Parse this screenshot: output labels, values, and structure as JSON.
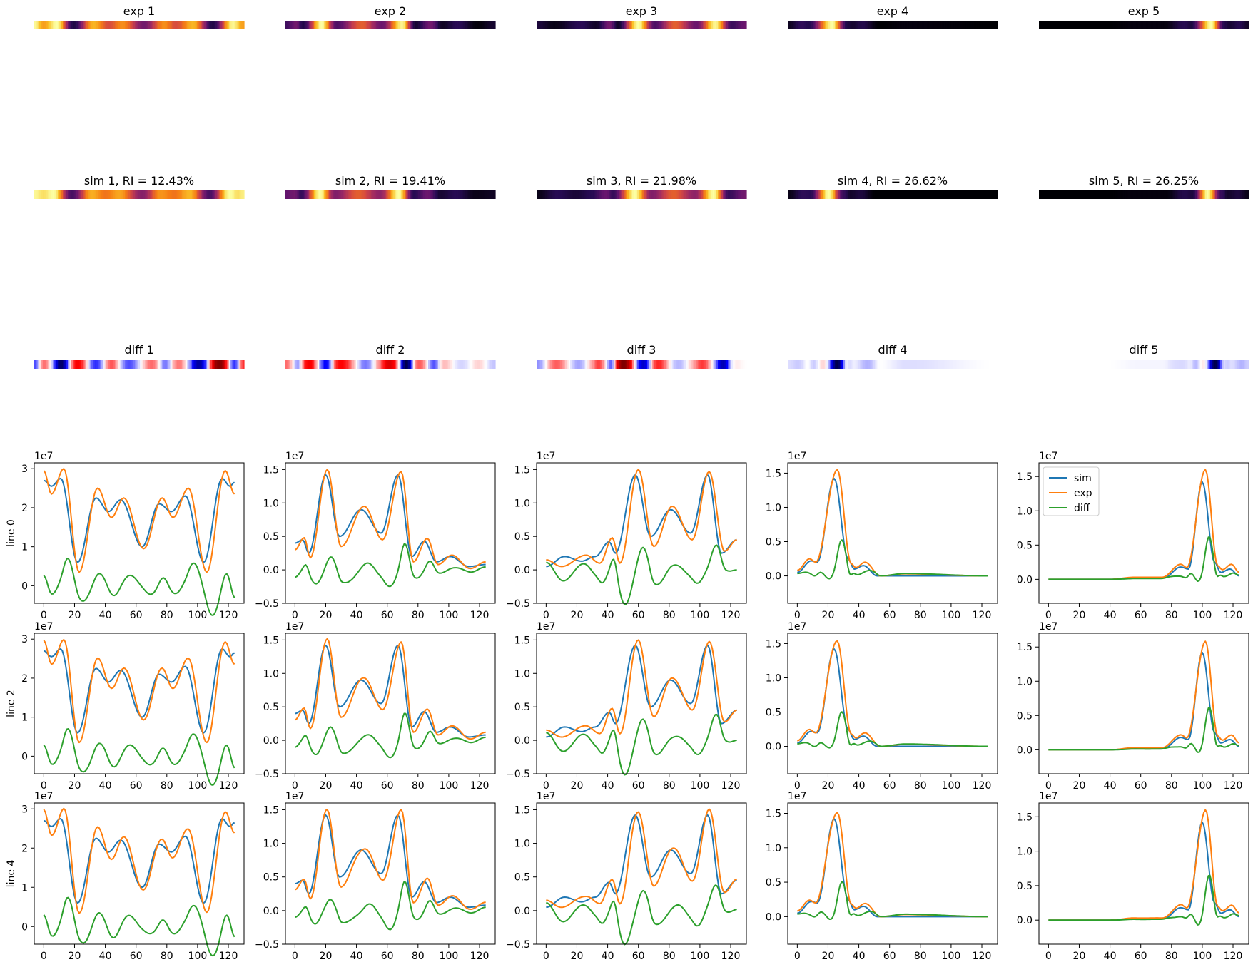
{
  "figure": {
    "colormap_titles": {
      "exp": [
        "exp 1",
        "exp 2",
        "exp 3",
        "exp 4",
        "exp 5"
      ],
      "sim": [
        "sim 1, RI = 12.43%",
        "sim 2, RI = 19.41%",
        "sim 3, RI = 21.98%",
        "sim 4, RI = 26.62%",
        "sim 5, RI = 26.25%"
      ],
      "diff": [
        "diff 1",
        "diff 2",
        "diff 3",
        "diff 4",
        "diff 5"
      ]
    },
    "row_labels": [
      "line 0",
      "line 2",
      "line 4"
    ],
    "offset_label": "1e7",
    "colors": {
      "sim": "#1f77b4",
      "exp": "#ff7f0e",
      "diff": "#2ca02c"
    },
    "colormaps": {
      "image": "inferno",
      "diff": "seismic"
    }
  },
  "chart_data": {
    "type": "line",
    "x_range": [
      0,
      124
    ],
    "xticks": [
      0,
      20,
      40,
      60,
      80,
      100,
      120
    ],
    "legend": {
      "entries": [
        "sim",
        "exp",
        "diff"
      ],
      "placement": "upper-left",
      "panel": "line 0, column 5"
    },
    "columns": [
      {
        "ylim": [
          -0.45,
          3.15
        ],
        "yticks": [
          0,
          1,
          2,
          3
        ],
        "ytick_labels": [
          "0",
          "1",
          "2",
          "3"
        ],
        "sim_peaks": [
          [
            0,
            2.7
          ],
          [
            5,
            2.55
          ],
          [
            11,
            2.75
          ],
          [
            22,
            0.6
          ],
          [
            34,
            2.25
          ],
          [
            42,
            1.9
          ],
          [
            50,
            2.2
          ],
          [
            64,
            1.0
          ],
          [
            75,
            2.1
          ],
          [
            83,
            1.9
          ],
          [
            92,
            2.3
          ],
          [
            104,
            0.6
          ],
          [
            116,
            2.75
          ],
          [
            121,
            2.55
          ],
          [
            124,
            2.65
          ]
        ],
        "exp_peaks": [
          [
            0,
            2.95
          ],
          [
            5,
            2.35
          ],
          [
            13,
            3.0
          ],
          [
            23,
            0.35
          ],
          [
            35,
            2.5
          ],
          [
            44,
            1.75
          ],
          [
            52,
            2.25
          ],
          [
            65,
            0.95
          ],
          [
            77,
            2.25
          ],
          [
            84,
            1.75
          ],
          [
            94,
            2.5
          ],
          [
            106,
            0.35
          ],
          [
            118,
            2.95
          ],
          [
            124,
            2.35
          ]
        ]
      },
      {
        "ylim": [
          -0.5,
          1.6
        ],
        "yticks": [
          -0.5,
          0,
          0.5,
          1.0,
          1.5
        ],
        "ytick_labels": [
          "−0.5",
          "0.0",
          "0.5",
          "1.0",
          "1.5"
        ],
        "sim_peaks": [
          [
            0,
            0.4
          ],
          [
            5,
            0.45
          ],
          [
            9,
            0.25
          ],
          [
            20,
            1.42
          ],
          [
            29,
            0.5
          ],
          [
            43,
            0.9
          ],
          [
            56,
            0.55
          ],
          [
            67,
            1.42
          ],
          [
            76,
            0.2
          ],
          [
            84,
            0.43
          ],
          [
            92,
            0.12
          ],
          [
            101,
            0.2
          ],
          [
            113,
            0.05
          ],
          [
            124,
            0.08
          ]
        ],
        "exp_peaks": [
          [
            0,
            0.3
          ],
          [
            6,
            0.48
          ],
          [
            10,
            0.18
          ],
          [
            21,
            1.5
          ],
          [
            30,
            0.35
          ],
          [
            45,
            0.95
          ],
          [
            57,
            0.45
          ],
          [
            69,
            1.47
          ],
          [
            77,
            0.12
          ],
          [
            86,
            0.47
          ],
          [
            93,
            0.08
          ],
          [
            102,
            0.22
          ],
          [
            114,
            0.02
          ],
          [
            124,
            0.12
          ]
        ]
      },
      {
        "ylim": [
          -0.5,
          1.6
        ],
        "yticks": [
          -0.5,
          0,
          0.5,
          1.0,
          1.5
        ],
        "ytick_labels": [
          "−0.5",
          "0.0",
          "0.5",
          "1.0",
          "1.5"
        ],
        "sim_peaks": [
          [
            0,
            0.05
          ],
          [
            12,
            0.2
          ],
          [
            23,
            0.13
          ],
          [
            32,
            0.2
          ],
          [
            41,
            0.42
          ],
          [
            45,
            0.25
          ],
          [
            58,
            1.42
          ],
          [
            68,
            0.5
          ],
          [
            81,
            0.9
          ],
          [
            94,
            0.55
          ],
          [
            105,
            1.42
          ],
          [
            114,
            0.25
          ],
          [
            124,
            0.45
          ]
        ],
        "exp_peaks": [
          [
            0,
            0.15
          ],
          [
            10,
            0.05
          ],
          [
            26,
            0.22
          ],
          [
            35,
            0.1
          ],
          [
            43,
            0.48
          ],
          [
            48,
            0.1
          ],
          [
            60,
            1.5
          ],
          [
            70,
            0.35
          ],
          [
            82,
            0.95
          ],
          [
            95,
            0.45
          ],
          [
            106,
            1.47
          ],
          [
            116,
            0.28
          ],
          [
            124,
            0.45
          ]
        ]
      },
      {
        "ylim": [
          -0.4,
          1.65
        ],
        "yticks": [
          0,
          0.5,
          1.0,
          1.5
        ],
        "ytick_labels": [
          "0.0",
          "0.5",
          "1.0",
          "1.5"
        ],
        "sim_peaks": [
          [
            0,
            0.05
          ],
          [
            9,
            0.22
          ],
          [
            13,
            0.2
          ],
          [
            24,
            1.42
          ],
          [
            33,
            0.25
          ],
          [
            37,
            0.1
          ],
          [
            43,
            0.15
          ],
          [
            52,
            0.0
          ],
          [
            124,
            0.0
          ]
        ],
        "exp_peaks": [
          [
            0,
            0.08
          ],
          [
            8,
            0.25
          ],
          [
            12,
            0.2
          ],
          [
            26,
            1.55
          ],
          [
            35,
            0.18
          ],
          [
            38,
            0.12
          ],
          [
            44,
            0.2
          ],
          [
            54,
            0.0
          ],
          [
            70,
            0.03
          ],
          [
            124,
            0.0
          ]
        ]
      },
      {
        "ylim": [
          -0.35,
          1.7
        ],
        "yticks": [
          0,
          0.5,
          1.0,
          1.5
        ],
        "ytick_labels": [
          "0.0",
          "0.5",
          "1.0",
          "1.5"
        ],
        "sim_peaks": [
          [
            0,
            0.0
          ],
          [
            40,
            0.0
          ],
          [
            55,
            0.02
          ],
          [
            75,
            0.02
          ],
          [
            86,
            0.18
          ],
          [
            91,
            0.15
          ],
          [
            100,
            1.42
          ],
          [
            108,
            0.25
          ],
          [
            112,
            0.1
          ],
          [
            118,
            0.15
          ],
          [
            124,
            0.05
          ]
        ],
        "exp_peaks": [
          [
            0,
            0.0
          ],
          [
            40,
            0.0
          ],
          [
            56,
            0.03
          ],
          [
            74,
            0.03
          ],
          [
            86,
            0.22
          ],
          [
            90,
            0.17
          ],
          [
            102,
            1.6
          ],
          [
            110,
            0.2
          ],
          [
            113,
            0.14
          ],
          [
            119,
            0.22
          ],
          [
            124,
            0.1
          ]
        ]
      }
    ]
  }
}
